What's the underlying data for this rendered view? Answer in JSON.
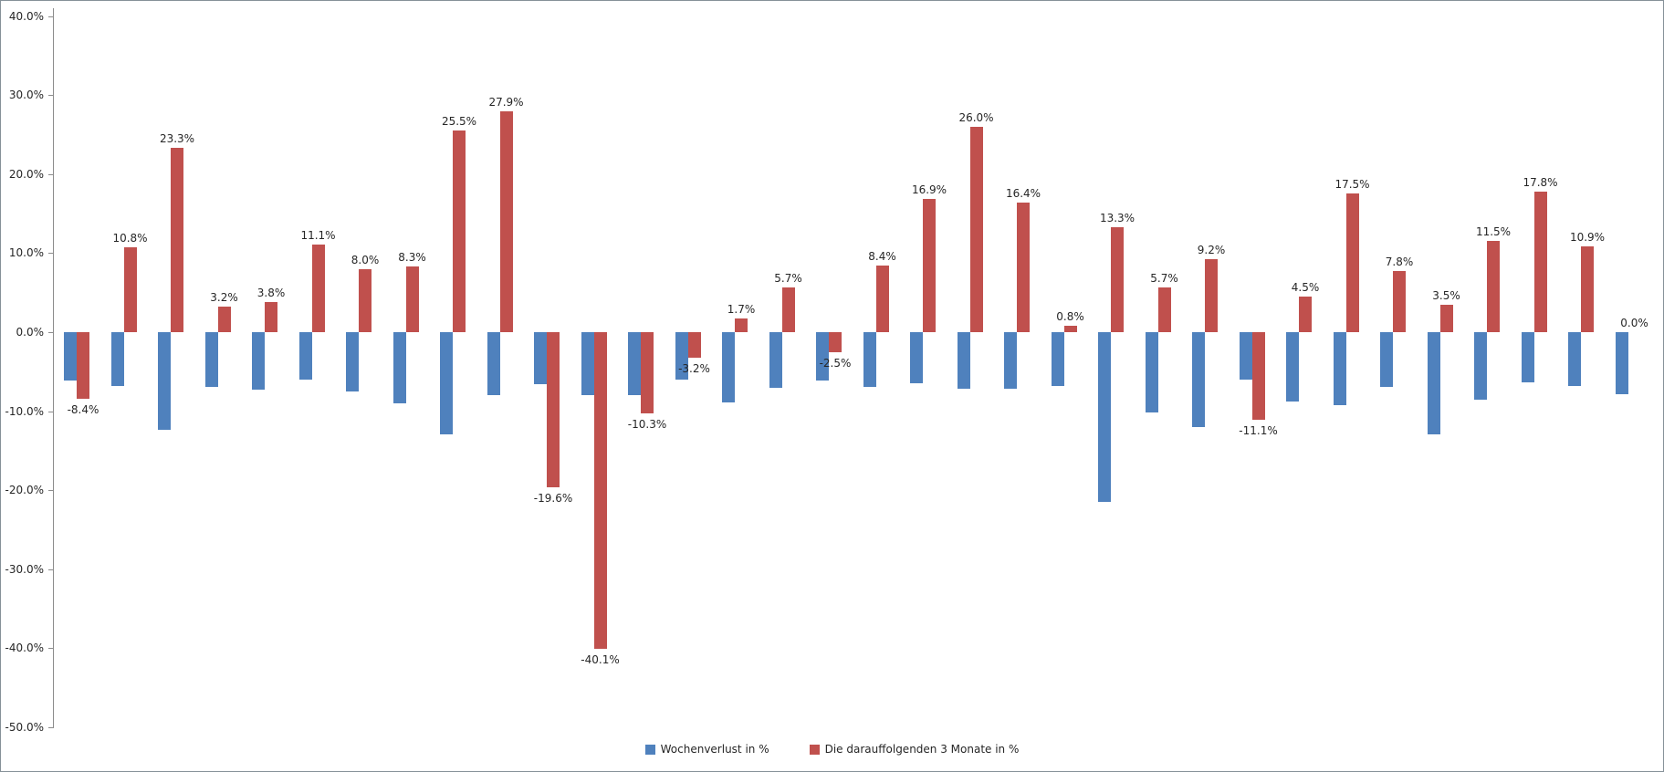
{
  "chart_data": {
    "type": "bar",
    "title": "",
    "x_labels_visible": false,
    "grid": false,
    "background": "#ffffff",
    "y_axis": {
      "min": -50,
      "max": 40,
      "step": 10,
      "format": "0.0%",
      "ticks": [
        {
          "value": 40,
          "label": "40.0%"
        },
        {
          "value": 30,
          "label": "30.0%"
        },
        {
          "value": 20,
          "label": "20.0%"
        },
        {
          "value": 10,
          "label": "10.0%"
        },
        {
          "value": 0,
          "label": "0.0%"
        },
        {
          "value": -10,
          "label": "-10.0%"
        },
        {
          "value": -20,
          "label": "-20.0%"
        },
        {
          "value": -30,
          "label": "-30.0%"
        },
        {
          "value": -40,
          "label": "-40.0%"
        },
        {
          "value": -50,
          "label": "-50.0%"
        }
      ]
    },
    "series": [
      {
        "name": "Wochenverlust in %",
        "color": "#4F81BD",
        "data_labels_visible": false,
        "values": [
          -6.1,
          -6.8,
          -12.3,
          -6.9,
          -7.3,
          -6.0,
          -7.5,
          -9.0,
          -12.9,
          -8.0,
          -6.6,
          -8.0,
          -8.0,
          -6.0,
          -8.9,
          -7.0,
          -6.1,
          -6.9,
          -6.5,
          -7.1,
          -7.2,
          -6.8,
          -21.5,
          -10.2,
          -12.0,
          -6.0,
          -8.8,
          -9.2,
          -6.9,
          -12.9,
          -8.5,
          -6.3,
          -6.8,
          -7.8
        ]
      },
      {
        "name": "Die darauffolgenden 3 Monate in %",
        "color": "#C0504D",
        "data_labels_visible": true,
        "values": [
          -8.4,
          10.8,
          23.3,
          3.2,
          3.8,
          11.1,
          8.0,
          8.3,
          25.5,
          27.9,
          -19.6,
          -40.1,
          -10.3,
          -3.2,
          1.7,
          5.7,
          -2.5,
          8.4,
          16.9,
          26.0,
          16.4,
          0.8,
          13.3,
          5.7,
          9.2,
          -11.1,
          4.5,
          17.5,
          7.8,
          3.5,
          11.5,
          17.8,
          10.9,
          0.0
        ],
        "labels": [
          "-8.4%",
          "10.8%",
          "23.3%",
          "3.2%",
          "3.8%",
          "11.1%",
          "8.0%",
          "8.3%",
          "25.5%",
          "27.9%",
          "-19.6%",
          "-40.1%",
          "-10.3%",
          "-3.2%",
          "1.7%",
          "5.7%",
          "-2.5%",
          "8.4%",
          "16.9%",
          "26.0%",
          "16.4%",
          "0.8%",
          "13.3%",
          "5.7%",
          "9.2%",
          "-11.1%",
          "4.5%",
          "17.5%",
          "7.8%",
          "3.5%",
          "11.5%",
          "17.8%",
          "10.9%",
          "0.0%"
        ]
      }
    ],
    "legend": {
      "position": "bottom"
    }
  }
}
